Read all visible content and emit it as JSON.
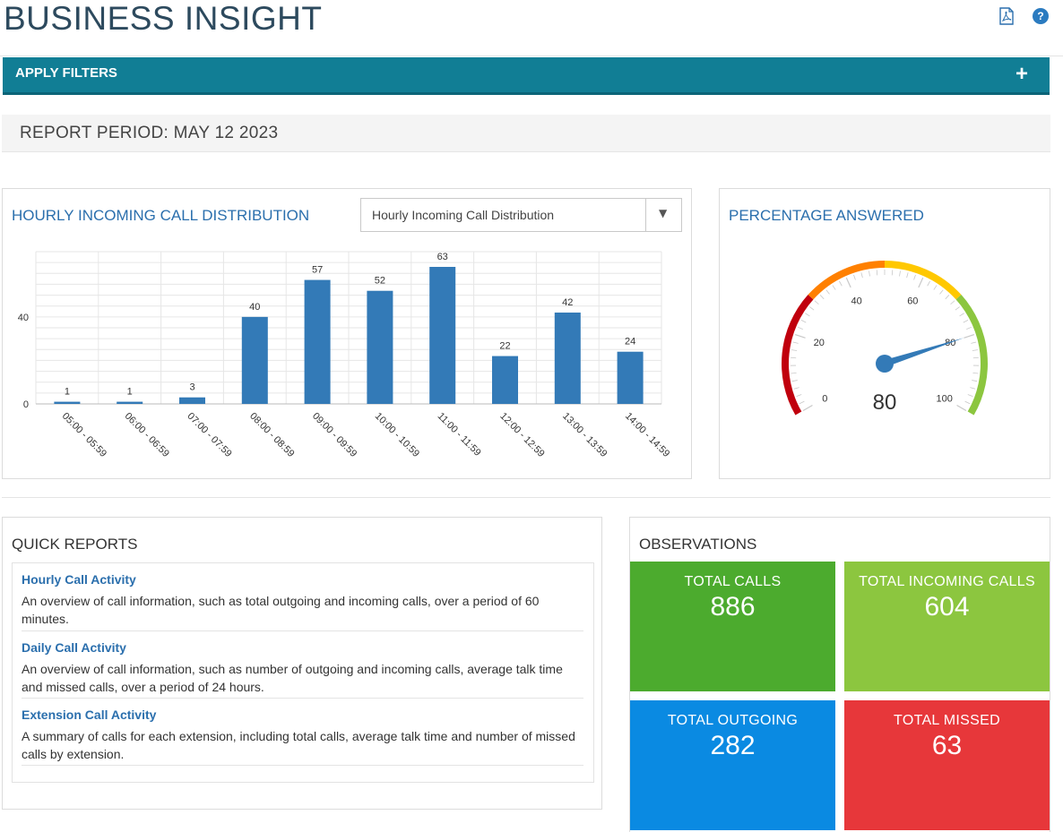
{
  "header": {
    "title": "BUSINESS INSIGHT",
    "pdf_icon": "pdf-icon",
    "help_icon": "help-icon",
    "help_glyph": "?"
  },
  "filters": {
    "label": "APPLY FILTERS",
    "toggle": "+"
  },
  "report_period": "REPORT PERIOD: MAY 12 2023",
  "distribution": {
    "title": "HOURLY INCOMING CALL DISTRIBUTION",
    "select_value": "Hourly Incoming Call Distribution",
    "select_arrow": "▼"
  },
  "chart_data": [
    {
      "type": "bar",
      "categories": [
        "05:00 - 05:59",
        "06:00 - 06:59",
        "07:00 - 07:59",
        "08:00 - 08:59",
        "09:00 - 09:59",
        "10:00 - 10:59",
        "11:00 - 11:59",
        "12:00 - 12:59",
        "13:00 - 13:59",
        "14:00 - 14:59"
      ],
      "values": [
        1,
        1,
        3,
        40,
        57,
        52,
        63,
        22,
        42,
        24
      ],
      "yticks": [
        0,
        40
      ],
      "ylim": [
        0,
        70
      ],
      "grid": true,
      "color": "#337ab7"
    }
  ],
  "gauge": {
    "title": "PERCENTAGE ANSWERED",
    "value": 80,
    "display_value": "80",
    "min": 0,
    "max": 100,
    "tick_labels": [
      "0",
      "20",
      "40",
      "60",
      "80",
      "100"
    ],
    "bands": [
      {
        "from": 0,
        "to": 30,
        "color": "#c0000d"
      },
      {
        "from": 30,
        "to": 50,
        "color": "#ff8000"
      },
      {
        "from": 50,
        "to": 70,
        "color": "#ffc800"
      },
      {
        "from": 70,
        "to": 100,
        "color": "#8cc63f"
      }
    ],
    "needle_color": "#337ab7"
  },
  "quick_reports": {
    "title": "QUICK REPORTS",
    "items": [
      {
        "link": "Hourly Call Activity",
        "desc": "An overview of call information, such as total outgoing and incoming calls, over a period of 60 minutes."
      },
      {
        "link": "Daily Call Activity",
        "desc": "An overview of call information, such as number of outgoing and incoming calls, average talk time and missed calls, over a period of 24 hours."
      },
      {
        "link": "Extension Call Activity",
        "desc": "A summary of calls for each extension, including total calls, average talk time and number of missed calls by extension."
      }
    ]
  },
  "observations": {
    "title": "OBSERVATIONS",
    "tiles": [
      {
        "label": "TOTAL CALLS",
        "value": "886",
        "color": "#4cab2e"
      },
      {
        "label": "TOTAL INCOMING CALLS",
        "value": "604",
        "color": "#8cc63f"
      },
      {
        "label": "TOTAL OUTGOING",
        "value": "282",
        "color": "#0a8ae2"
      },
      {
        "label": "TOTAL MISSED",
        "value": "63",
        "color": "#e7373a"
      }
    ]
  }
}
